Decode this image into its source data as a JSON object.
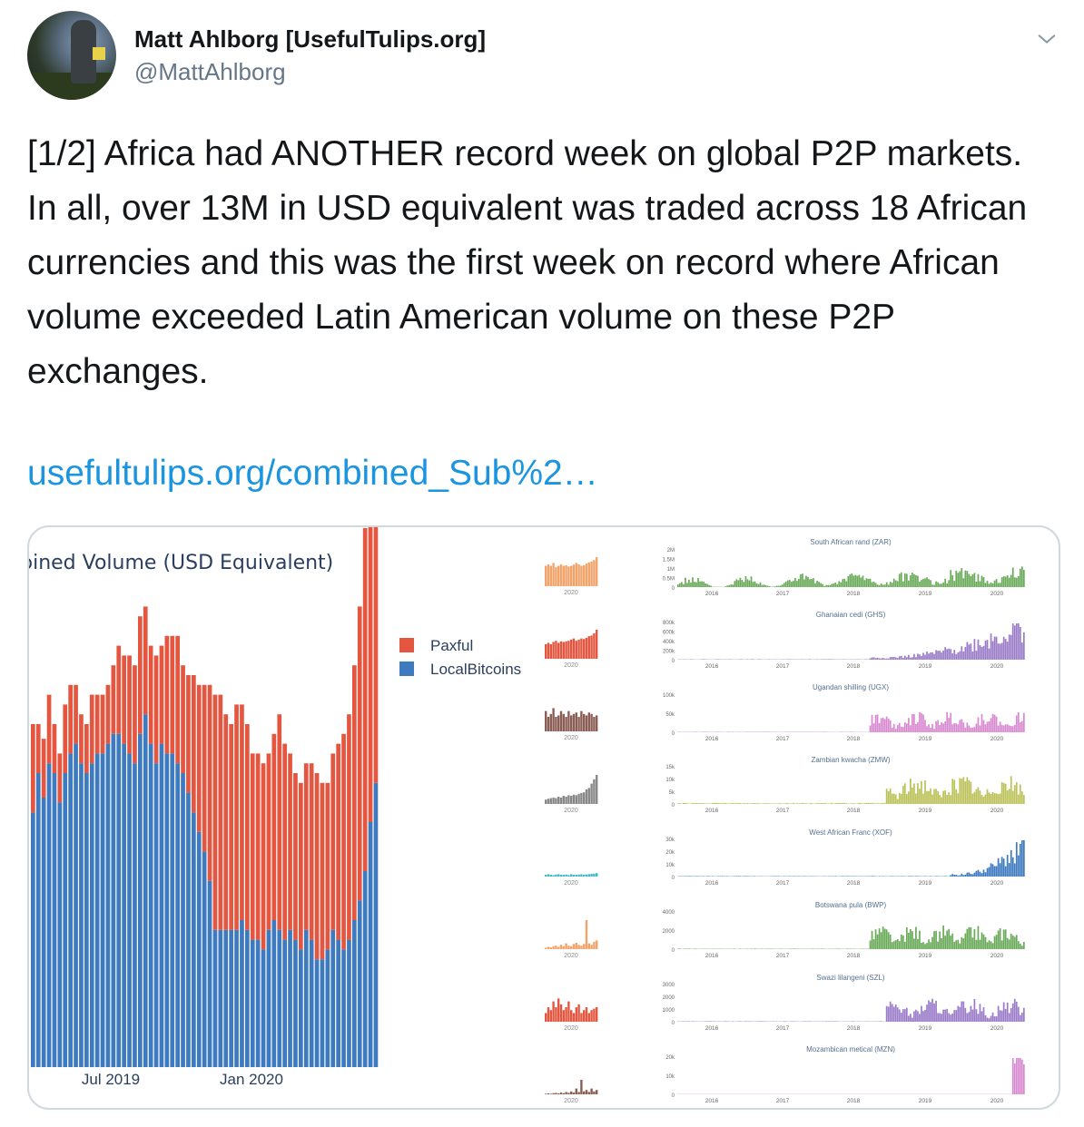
{
  "author": {
    "name": "Matt Ahlborg [UsefulTulips.org]",
    "handle": "@MattAhlborg"
  },
  "tweet": {
    "text": "[1/2] Africa had ANOTHER record week on global P2P markets. In all, over 13M in USD equivalent was traded across 18 African currencies and this was the first week on record where African volume exceeded Latin American volume on these P2P exchanges.",
    "link": "usefultulips.org/combined_Sub%2…"
  },
  "icons": {
    "menu": "chevron-down-icon"
  },
  "colors": {
    "paxful": "#e4563f",
    "localbitcoins": "#3d7abf",
    "link": "#1b95e0"
  },
  "chart_data": [
    {
      "type": "bar",
      "title": "ɔined Volume  (USD Equivalent)",
      "stacked": true,
      "x_ticks": [
        "Jul 2019",
        "Jan 2020"
      ],
      "legend": [
        "Paxful",
        "LocalBitcoins"
      ],
      "series": [
        {
          "name": "LocalBitcoins",
          "values": [
            0.52,
            0.6,
            0.55,
            0.62,
            0.6,
            0.54,
            0.6,
            0.64,
            0.66,
            0.62,
            0.6,
            0.62,
            0.64,
            0.64,
            0.66,
            0.68,
            0.68,
            0.66,
            0.64,
            0.62,
            0.68,
            0.72,
            0.66,
            0.62,
            0.66,
            0.64,
            0.64,
            0.62,
            0.6,
            0.56,
            0.52,
            0.48,
            0.44,
            0.38,
            0.28,
            0.28,
            0.28,
            0.28,
            0.28,
            0.3,
            0.28,
            0.26,
            0.26,
            0.24,
            0.28,
            0.3,
            0.28,
            0.26,
            0.28,
            0.26,
            0.24,
            0.28,
            0.26,
            0.22,
            0.22,
            0.24,
            0.28,
            0.26,
            0.24,
            0.26,
            0.3,
            0.34,
            0.4,
            0.5,
            0.58
          ]
        },
        {
          "name": "Paxful",
          "values": [
            0.18,
            0.1,
            0.12,
            0.14,
            0.1,
            0.1,
            0.14,
            0.14,
            0.12,
            0.1,
            0.1,
            0.14,
            0.12,
            0.12,
            0.12,
            0.14,
            0.18,
            0.18,
            0.2,
            0.2,
            0.24,
            0.22,
            0.2,
            0.22,
            0.2,
            0.24,
            0.24,
            0.26,
            0.22,
            0.24,
            0.28,
            0.3,
            0.34,
            0.4,
            0.48,
            0.48,
            0.44,
            0.42,
            0.46,
            0.44,
            0.42,
            0.38,
            0.38,
            0.38,
            0.36,
            0.38,
            0.44,
            0.4,
            0.36,
            0.34,
            0.34,
            0.34,
            0.36,
            0.38,
            0.36,
            0.34,
            0.36,
            0.4,
            0.44,
            0.46,
            0.52,
            0.6,
            0.7,
            0.82,
            0.94
          ]
        }
      ]
    },
    {
      "type": "bar",
      "small_multiples": true,
      "x_ticks": [
        "2016",
        "2017",
        "2018",
        "2019",
        "2020"
      ],
      "series": [
        {
          "name": "South African rand (ZAR)",
          "yticks": [
            "2M",
            "1.5M",
            "1M",
            "0.5M",
            "0"
          ],
          "color": "#6aab5a"
        },
        {
          "name": "Ghanaian cedi (GHS)",
          "yticks": [
            "800k",
            "600k",
            "400k",
            "200k",
            "0"
          ],
          "color": "#9a7cc9"
        },
        {
          "name": "Ugandan shilling (UGX)",
          "yticks": [
            "100k",
            "50k",
            "0"
          ],
          "color": "#d88ad1"
        },
        {
          "name": "Zambian kwacha (ZMW)",
          "yticks": [
            "15k",
            "10k",
            "5k",
            "0"
          ],
          "color": "#bcc25a"
        },
        {
          "name": "West African Franc (XOF)",
          "yticks": [
            "30k",
            "20k",
            "10k",
            "0"
          ],
          "color": "#3d7abf"
        },
        {
          "name": "Botswana pula (BWP)",
          "yticks": [
            "4000",
            "2000",
            "0"
          ],
          "color": "#6aab5a"
        },
        {
          "name": "Swazi lilangeni (SZL)",
          "yticks": [
            "3000",
            "2000",
            "1000",
            "0"
          ],
          "color": "#9a7cc9"
        },
        {
          "name": "Mozambican metical (MZN)",
          "yticks": [
            "20k",
            "10k",
            "0"
          ],
          "color": "#d88ad1"
        }
      ]
    }
  ],
  "thumbs": [
    {
      "tick": "2020",
      "color": "#f2a46a"
    },
    {
      "tick": "2020",
      "color": "#e4563f"
    },
    {
      "tick": "2020",
      "color": "#8b5e55"
    },
    {
      "tick": "2020",
      "color": "#888888"
    },
    {
      "tick": "2020",
      "color": "#40b8c8"
    },
    {
      "tick": "2020",
      "color": "#f2a46a"
    },
    {
      "tick": "2020",
      "color": "#e4563f"
    },
    {
      "tick": "2020",
      "color": "#8b5e55"
    }
  ]
}
